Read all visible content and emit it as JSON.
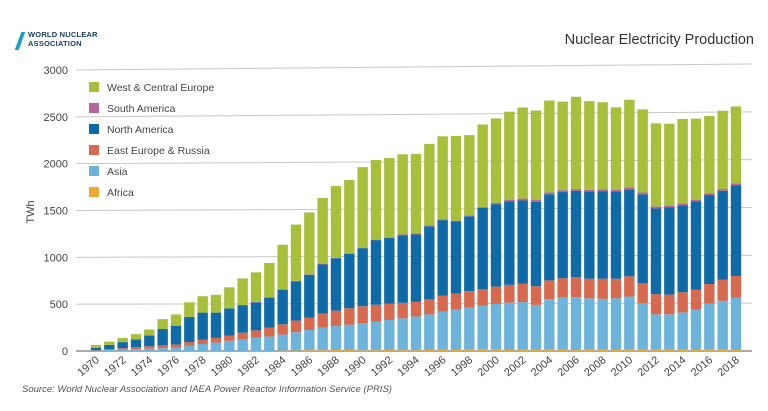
{
  "header": {
    "logo_line1": "WORLD NUCLEAR",
    "logo_line2": "ASSOCIATION",
    "title": "Nuclear Electricity Production"
  },
  "source": "Source: World Nuclear Association and IAEA Power Reactor Information Service (PRIS)",
  "chart_data": {
    "type": "bar",
    "stacked": true,
    "title": "Nuclear Electricity Production",
    "ylabel": "TWh",
    "xlabel": "",
    "ylim": [
      0,
      3000
    ],
    "yticks": [
      0,
      500,
      1000,
      1500,
      2000,
      2500,
      3000
    ],
    "grid": true,
    "legend_position": "top-left",
    "categories": [
      "1970",
      "1971",
      "1972",
      "1973",
      "1974",
      "1975",
      "1976",
      "1977",
      "1978",
      "1979",
      "1980",
      "1981",
      "1982",
      "1983",
      "1984",
      "1985",
      "1986",
      "1987",
      "1988",
      "1989",
      "1990",
      "1991",
      "1992",
      "1993",
      "1994",
      "1995",
      "1996",
      "1997",
      "1998",
      "1999",
      "2000",
      "2001",
      "2002",
      "2003",
      "2004",
      "2005",
      "2006",
      "2007",
      "2008",
      "2009",
      "2010",
      "2011",
      "2012",
      "2013",
      "2014",
      "2015",
      "2016",
      "2017",
      "2018"
    ],
    "x_tick_labels": [
      "1970",
      "1972",
      "1974",
      "1976",
      "1978",
      "1980",
      "1982",
      "1984",
      "1986",
      "1988",
      "1990",
      "1992",
      "1994",
      "1996",
      "1998",
      "2000",
      "2002",
      "2004",
      "2006",
      "2008",
      "2010",
      "2012",
      "2014",
      "2016",
      "2018"
    ],
    "series": [
      {
        "name": "Africa",
        "color": "#f0a830",
        "values": [
          0,
          0,
          0,
          0,
          0,
          0,
          0,
          0,
          0,
          0,
          0,
          0,
          0,
          0,
          5,
          5,
          9,
          9,
          11,
          11,
          8,
          9,
          11,
          9,
          9,
          11,
          12,
          12,
          13,
          13,
          13,
          11,
          12,
          12,
          14,
          12,
          10,
          12,
          12,
          12,
          12,
          12,
          12,
          12,
          12,
          11,
          15,
          15,
          11
        ]
      },
      {
        "name": "Asia",
        "color": "#6cb4dc",
        "values": [
          5,
          10,
          15,
          20,
          25,
          30,
          35,
          55,
          75,
          90,
          110,
          125,
          140,
          155,
          170,
          195,
          215,
          240,
          255,
          270,
          290,
          305,
          320,
          340,
          360,
          380,
          410,
          430,
          450,
          470,
          490,
          505,
          510,
          480,
          540,
          560,
          565,
          550,
          545,
          550,
          570,
          500,
          380,
          380,
          400,
          430,
          490,
          520,
          560
        ]
      },
      {
        "name": "East Europe & Russia",
        "color": "#d76a4e",
        "values": [
          5,
          10,
          15,
          20,
          25,
          30,
          35,
          40,
          45,
          50,
          55,
          70,
          80,
          95,
          110,
          125,
          130,
          150,
          165,
          175,
          180,
          180,
          175,
          165,
          155,
          160,
          170,
          170,
          175,
          175,
          185,
          190,
          195,
          200,
          200,
          205,
          215,
          210,
          215,
          210,
          215,
          210,
          215,
          210,
          215,
          215,
          210,
          225,
          230
        ]
      },
      {
        "name": "North America",
        "color": "#0f6ba8",
        "values": [
          25,
          45,
          65,
          85,
          115,
          175,
          200,
          270,
          290,
          270,
          290,
          295,
          300,
          320,
          370,
          420,
          460,
          525,
          560,
          580,
          620,
          690,
          700,
          720,
          720,
          780,
          805,
          770,
          800,
          870,
          880,
          890,
          890,
          900,
          920,
          920,
          920,
          930,
          935,
          930,
          930,
          950,
          915,
          930,
          930,
          940,
          950,
          950,
          970
        ]
      },
      {
        "name": "South America",
        "color": "#b5649d",
        "values": [
          0,
          0,
          0,
          0,
          0,
          0,
          0,
          0,
          0,
          0,
          0,
          0,
          5,
          5,
          5,
          5,
          5,
          5,
          5,
          5,
          5,
          5,
          5,
          10,
          10,
          10,
          10,
          10,
          10,
          10,
          15,
          20,
          20,
          20,
          20,
          20,
          20,
          20,
          20,
          20,
          20,
          20,
          20,
          20,
          20,
          20,
          20,
          20,
          20
        ]
      },
      {
        "name": "West & Central Europe",
        "color": "#a8bf3c",
        "values": [
          30,
          35,
          45,
          55,
          65,
          105,
          120,
          155,
          175,
          190,
          225,
          285,
          315,
          365,
          475,
          600,
          660,
          705,
          765,
          785,
          860,
          850,
          849,
          856,
          851,
          870,
          885,
          904,
          857,
          880,
          900,
          939,
          973,
          955,
          980,
          945,
          985,
          945,
          929,
          880,
          935,
          887,
          888,
          875,
          900,
          865,
          825,
          835,
          820
        ]
      }
    ]
  },
  "colors": {
    "grid": "#c8c8c8",
    "axis": "#555555",
    "background": "#ffffff"
  }
}
